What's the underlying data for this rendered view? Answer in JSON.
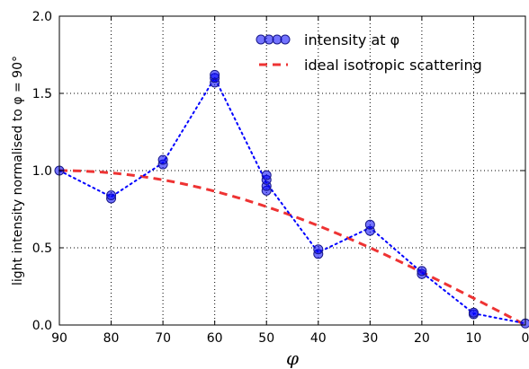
{
  "chart_data": {
    "type": "scatter",
    "title": "",
    "xlabel": "φ",
    "ylabel": "light intensity normalised to φ = 90°",
    "xlim": [
      90,
      0
    ],
    "ylim": [
      0.0,
      2.0
    ],
    "x_ticks": [
      "90",
      "80",
      "70",
      "60",
      "50",
      "40",
      "30",
      "20",
      "10",
      "0"
    ],
    "y_ticks": [
      "0.0",
      "0.5",
      "1.0",
      "1.5",
      "2.0"
    ],
    "grid": true,
    "legend_position": "top-right",
    "series": [
      {
        "name": "intensity at φ",
        "style": "scatter markers with dotted connecting line",
        "color": "#0000ff",
        "x": [
          90,
          80,
          80,
          70,
          70,
          60,
          60,
          60,
          50,
          50,
          50,
          50,
          40,
          40,
          30,
          30,
          20,
          20,
          10,
          10,
          0
        ],
        "y": [
          1.0,
          0.82,
          0.84,
          1.04,
          1.07,
          1.57,
          1.6,
          1.62,
          0.87,
          0.9,
          0.94,
          0.97,
          0.46,
          0.49,
          0.61,
          0.65,
          0.33,
          0.35,
          0.07,
          0.08,
          0.01
        ],
        "line_x": [
          90,
          80,
          70,
          60,
          50,
          40,
          30,
          20,
          10,
          0
        ],
        "line_y": [
          1.0,
          0.83,
          1.05,
          1.6,
          0.92,
          0.47,
          0.63,
          0.34,
          0.075,
          0.01
        ]
      },
      {
        "name": "ideal isotropic scattering",
        "style": "dashed line",
        "color": "#ee3333",
        "function": "sin(phi)"
      }
    ]
  }
}
